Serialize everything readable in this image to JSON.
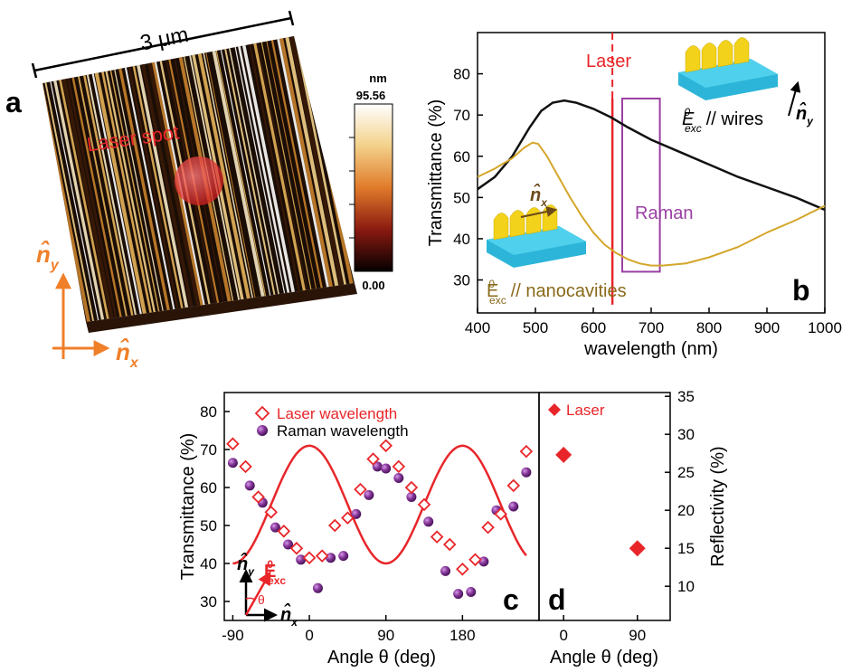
{
  "panel_a": {
    "label": "a",
    "scale_text": "3 μm",
    "spot_label": "Laser spot",
    "colorbar_unit": "nm",
    "colorbar_max": "95.56",
    "colorbar_min": "0.00",
    "axis_x": "n̂",
    "axis_x_sub": "x",
    "axis_y": "n̂",
    "axis_y_sub": "y"
  },
  "panel_b": {
    "label": "b",
    "laser_label": "Laser",
    "raman_label": "Raman",
    "wires_field": "E",
    "wires_sup": "0",
    "wires_sub": "exc",
    "wires_text": "// wires",
    "cav_field": "E",
    "cav_sup": "0",
    "cav_sub": "exc",
    "cav_text": "// nanocavities",
    "nx_label": "n̂",
    "nx_sub": "x",
    "ny_label": "n̂",
    "ny_sub": "y"
  },
  "panel_c": {
    "label": "c",
    "legend": [
      "Laser wavelength",
      "Raman wavelength"
    ],
    "inset_field": "E",
    "inset_sup": "0",
    "inset_sub": "exc",
    "inset_theta": "θ",
    "inset_ny": "n̂",
    "inset_ny_sub": "y",
    "inset_nx": "n̂",
    "inset_nx_sub": "x"
  },
  "panel_d": {
    "label": "d",
    "legend": [
      "Laser"
    ]
  },
  "chart_data": [
    {
      "panel": "b",
      "type": "line",
      "xlabel": "wavelength (nm)",
      "ylabel": "Transmittance (%)",
      "xlim": [
        400,
        1000
      ],
      "ylim": [
        22,
        90
      ],
      "xticks": [
        400,
        500,
        600,
        700,
        800,
        900,
        1000
      ],
      "yticks": [
        30,
        40,
        50,
        60,
        70,
        80
      ],
      "laser_line_x": 633,
      "raman_band_x": [
        650,
        715
      ],
      "raman_band_y": [
        32,
        74
      ],
      "series": [
        {
          "color": "#111111",
          "x": [
            400,
            430,
            460,
            490,
            510,
            530,
            550,
            570,
            600,
            630,
            660,
            700,
            750,
            800,
            850,
            900,
            950,
            1000
          ],
          "y": [
            52,
            55,
            60,
            67,
            71,
            73,
            73.5,
            73,
            71.5,
            69.5,
            67,
            64,
            61,
            58,
            55,
            52.5,
            50,
            47
          ]
        },
        {
          "color": "#d4a62a",
          "x": [
            400,
            430,
            460,
            480,
            495,
            505,
            520,
            540,
            560,
            580,
            600,
            620,
            640,
            660,
            680,
            700,
            720,
            760,
            800,
            850,
            900,
            950,
            1000
          ],
          "y": [
            55,
            57,
            59.5,
            62,
            63.3,
            63,
            60,
            55,
            50,
            45.5,
            41.5,
            38.5,
            36.5,
            35,
            34,
            33.5,
            33.5,
            34,
            35.5,
            38,
            41.5,
            44.5,
            48
          ]
        }
      ]
    },
    {
      "panel": "c",
      "type": "scatter",
      "xlabel": "Angle θ (deg)",
      "ylabel": "Transmittance (%)",
      "xlim": [
        -100,
        270
      ],
      "ylim": [
        25,
        85
      ],
      "xticks": [
        -90,
        0,
        90,
        180
      ],
      "yticks": [
        30,
        40,
        50,
        60,
        70,
        80
      ],
      "series": [
        {
          "name": "Laser wavelength",
          "marker": "diamond-open",
          "color": "#e8262a",
          "x": [
            -90,
            -75,
            -60,
            -45,
            -30,
            -15,
            0,
            15,
            30,
            45,
            60,
            75,
            90,
            105,
            120,
            135,
            150,
            165,
            180,
            195,
            210,
            225,
            240,
            255
          ],
          "y": [
            71.5,
            65.5,
            57.5,
            53.5,
            48.5,
            44,
            41.5,
            42,
            50,
            52,
            59.5,
            67.5,
            71,
            65.5,
            60,
            55.5,
            47,
            45,
            38.5,
            41,
            49.5,
            53,
            60.5,
            69.5
          ]
        },
        {
          "name": "Raman wavelength",
          "marker": "sphere",
          "color": "#7b2d8e",
          "x": [
            -90,
            -70,
            -55,
            -40,
            -25,
            -10,
            10,
            25,
            40,
            55,
            70,
            80,
            90,
            105,
            120,
            140,
            160,
            175,
            190,
            205,
            220,
            240,
            255
          ],
          "y": [
            66.5,
            60.5,
            56,
            49.5,
            45,
            41,
            33.5,
            41.5,
            42,
            53,
            58,
            65.5,
            65,
            62.5,
            57.5,
            51,
            38,
            32,
            32.5,
            40.5,
            54,
            55,
            64
          ]
        },
        {
          "name": "fit",
          "type": "line",
          "color": "#e8262a",
          "model": "55.5 + 15.5*cos(2*theta)"
        }
      ]
    },
    {
      "panel": "d",
      "type": "scatter",
      "xlabel": "Angle θ (deg)",
      "ylabel": "Reflectivity (%)",
      "xlim": [
        -30,
        130
      ],
      "ylim": [
        5.5,
        35.5
      ],
      "xticks": [
        0,
        90
      ],
      "yticks": [
        10,
        15,
        20,
        25,
        30,
        35
      ],
      "series": [
        {
          "name": "Laser",
          "marker": "diamond-filled",
          "color": "#e8262a",
          "x": [
            0,
            90
          ],
          "y": [
            27.3,
            15
          ]
        }
      ]
    }
  ]
}
